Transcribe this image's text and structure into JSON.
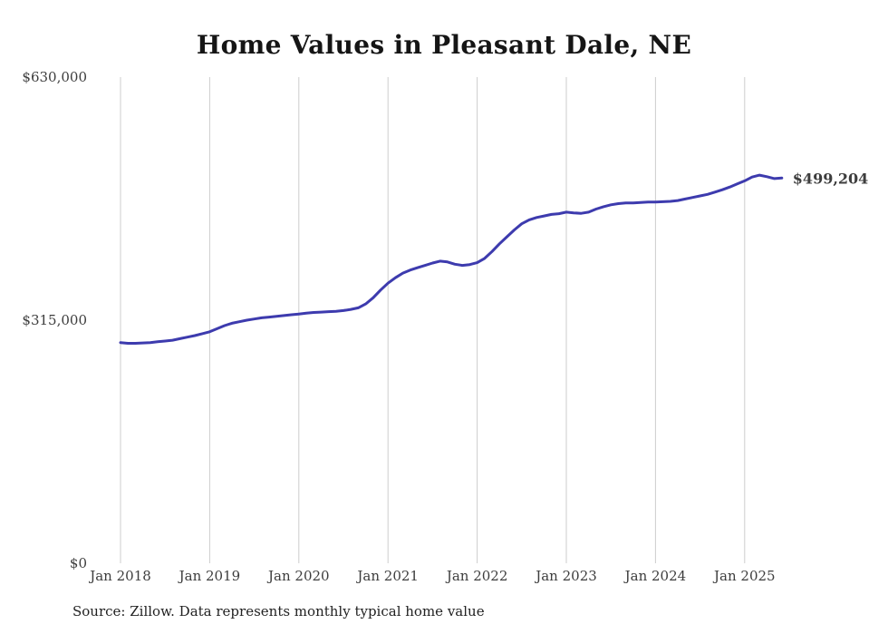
{
  "title": "Home Values in Pleasant Dale, NE",
  "source_note": "Source: Zillow. Data represents monthly typical home value",
  "end_label": "$499,204",
  "colors": {
    "line": "#3d3bae",
    "grid": "#cdcdcd",
    "tick_text": "#3d3d3d",
    "title_text": "#151515"
  },
  "chart_data": {
    "type": "line",
    "title": "Home Values in Pleasant Dale, NE",
    "ylabel": "",
    "xlabel": "",
    "ylim": [
      0,
      630000
    ],
    "grid": "vertical-only",
    "legend": "none",
    "x_ticks": [
      "Jan 2018",
      "Jan 2019",
      "Jan 2020",
      "Jan 2021",
      "Jan 2022",
      "Jan 2023",
      "Jan 2024",
      "Jan 2025"
    ],
    "y_ticks": [
      {
        "label": "$0",
        "value": 0
      },
      {
        "label": "$315,000",
        "value": 315000
      },
      {
        "label": "$630,000",
        "value": 630000
      }
    ],
    "x_start_month": "2018-01",
    "x_end_month": "2025-06",
    "final_value": 499204,
    "series": [
      {
        "name": "Monthly typical home value",
        "values": [
          286000,
          285000,
          285000,
          285500,
          286000,
          287000,
          288000,
          289000,
          291000,
          293000,
          295000,
          297500,
          300000,
          304000,
          308000,
          311000,
          313000,
          315000,
          316500,
          318000,
          319000,
          320000,
          321000,
          322000,
          323000,
          324000,
          325000,
          325500,
          326000,
          326500,
          327500,
          329000,
          331000,
          336000,
          344000,
          354000,
          363000,
          370000,
          376000,
          380000,
          383000,
          386000,
          389000,
          391500,
          390500,
          387500,
          386000,
          387000,
          389500,
          395000,
          404000,
          414000,
          423000,
          432000,
          440000,
          445000,
          448000,
          450000,
          452000,
          453000,
          455000,
          454000,
          453500,
          455000,
          459000,
          462000,
          464500,
          466000,
          467000,
          467000,
          467500,
          468000,
          468000,
          468500,
          469000,
          470000,
          472000,
          474000,
          476000,
          478000,
          481000,
          484000,
          487500,
          491500,
          495500,
          500500,
          503000,
          501000,
          498500,
          499204
        ]
      }
    ]
  }
}
